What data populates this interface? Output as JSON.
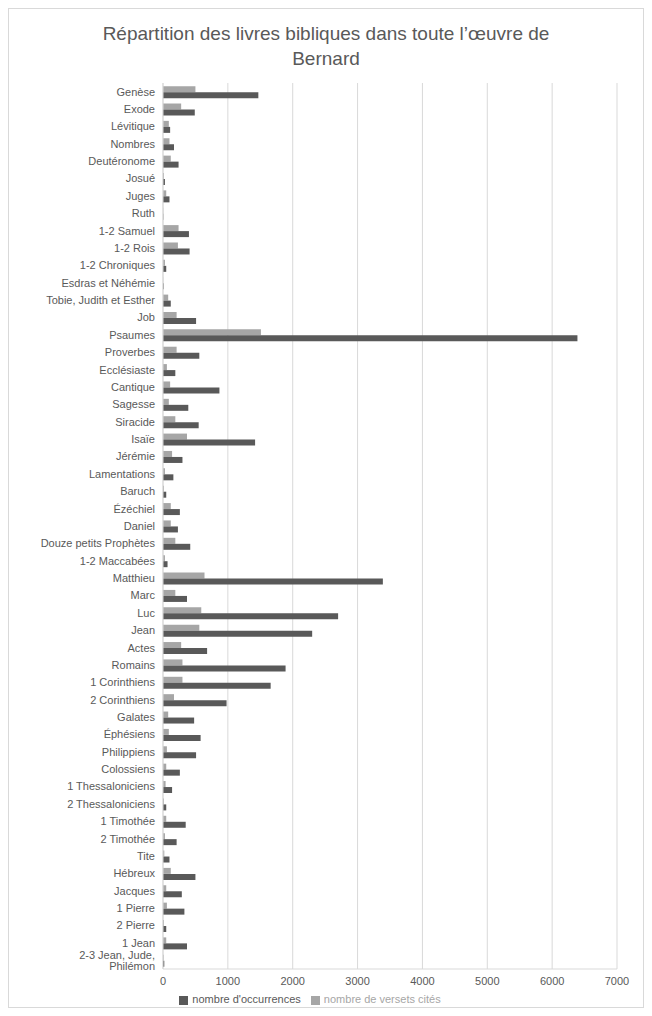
{
  "chart_data": {
    "type": "bar",
    "title": "Répartition des livres bibliques dans toute l’œuvre de Bernard",
    "orientation": "horizontal",
    "categories": [
      "Genèse",
      "Exode",
      "Lévitique",
      "Nombres",
      "Deutéronome",
      "Josué",
      "Juges",
      "Ruth",
      "1-2 Samuel",
      "1-2 Rois",
      "1-2 Chroniques",
      "Esdras et Néhémie",
      "Tobie, Judith et Esther",
      "Job",
      "Psaumes",
      "Proverbes",
      "Ecclésiaste",
      "Cantique",
      "Sagesse",
      "Siracide",
      "Isaïe",
      "Jérémie",
      "Lamentations",
      "Baruch",
      "Ézéchiel",
      "Daniel",
      "Douze petits Prophètes",
      "1-2 Maccabées",
      "Matthieu",
      "Marc",
      "Luc",
      "Jean",
      "Actes",
      "Romains",
      "1 Corinthiens",
      "2 Corinthiens",
      "Galates",
      "Éphésiens",
      "Philippiens",
      "Colossiens",
      "1 Thessaloniciens",
      "2 Thessaloniciens",
      "1 Timothée",
      "2 Timothée",
      "Tite",
      "Hébreux",
      "Jacques",
      "1 Pierre",
      "2 Pierre",
      "1 Jean",
      "2-3 Jean, Jude, Philémon"
    ],
    "series": [
      {
        "name": "nombre de versets cités",
        "color": "#a6a6a6",
        "values": [
          500,
          280,
          90,
          100,
          120,
          15,
          50,
          3,
          240,
          230,
          30,
          2,
          80,
          210,
          1510,
          210,
          60,
          110,
          90,
          190,
          370,
          140,
          30,
          15,
          120,
          120,
          190,
          30,
          640,
          190,
          590,
          560,
          280,
          300,
          300,
          170,
          80,
          90,
          60,
          50,
          40,
          15,
          50,
          30,
          20,
          120,
          50,
          60,
          15,
          50,
          10
        ]
      },
      {
        "name": "nombre d'occurrences",
        "color": "#595959",
        "values": [
          1470,
          490,
          110,
          170,
          240,
          30,
          100,
          5,
          400,
          410,
          50,
          10,
          120,
          510,
          6390,
          560,
          190,
          870,
          390,
          550,
          1420,
          300,
          160,
          50,
          260,
          230,
          420,
          70,
          3390,
          370,
          2700,
          2300,
          680,
          1890,
          1660,
          980,
          480,
          580,
          510,
          260,
          140,
          50,
          350,
          210,
          100,
          500,
          290,
          330,
          50,
          370,
          20
        ]
      }
    ],
    "xlim": [
      0,
      7000
    ],
    "xticks": [
      0,
      1000,
      2000,
      3000,
      4000,
      5000,
      6000,
      7000
    ],
    "grid": true,
    "legend": "bottom"
  }
}
